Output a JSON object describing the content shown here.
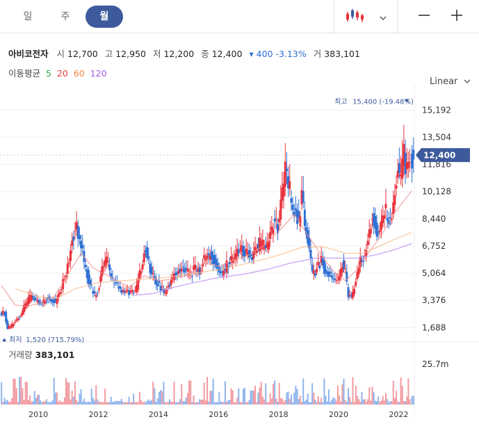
{
  "tabs": [
    {
      "label": "일",
      "active": false
    },
    {
      "label": "주",
      "active": false
    },
    {
      "label": "월",
      "active": true
    }
  ],
  "toolbar": {
    "chart_type_icon": "candlestick-icon",
    "dropdown_icon": "chevron-down-icon",
    "zoom_out_icon": "minus-icon",
    "zoom_in_icon": "plus-icon"
  },
  "info": {
    "name": "아비코전자",
    "open_label": "시",
    "open": "12,700",
    "high_label": "고",
    "high": "12,950",
    "low_label": "저",
    "low": "12,200",
    "close_label": "종",
    "close": "12,400",
    "change": "▾ 400 -3.13%",
    "volume_label": "거",
    "volume": "383,101"
  },
  "ma": {
    "label": "이동평균",
    "items": [
      {
        "period": "5",
        "color": "#2eaa3e"
      },
      {
        "period": "20",
        "color": "#ea3a3a"
      },
      {
        "period": "60",
        "color": "#f08a3c"
      },
      {
        "period": "120",
        "color": "#a259e6"
      }
    ]
  },
  "scale_button": "Linear",
  "volume_panel": {
    "label": "거래량",
    "value": "383,101"
  },
  "colors": {
    "up": "#e8323c",
    "down": "#2f6fd3",
    "accent": "#3d5a9c"
  },
  "chart_data": {
    "type": "candlestick",
    "y_ticks": [
      "15,192",
      "13,504",
      "11,816",
      "10,128",
      "8,440",
      "6,752",
      "5,064",
      "3,376",
      "1,688"
    ],
    "y_tick_values": [
      15192,
      13504,
      11816,
      10128,
      8440,
      6752,
      5064,
      3376,
      1688
    ],
    "ylim": [
      1400,
      16200
    ],
    "x_ticks": [
      "2010",
      "2012",
      "2014",
      "2016",
      "2018",
      "2020",
      "2022"
    ],
    "x_tick_years": [
      2010,
      2012,
      2014,
      2016,
      2018,
      2020,
      2022
    ],
    "xlim": [
      2008.7,
      2022.5
    ],
    "current_price_label": "12,400",
    "current_price": 12400,
    "high_annotation": {
      "label": "최고",
      "value": "15,400 (-19.48%)",
      "year": 2022.25,
      "price": 15400
    },
    "low_annotation": {
      "label": "최저",
      "value": "1,520 (715.79%)",
      "year": 2008.82,
      "price": 1520
    },
    "volume_axis_label": "25.7m",
    "volume_axis_value": 25.7,
    "volume_unit": "millions",
    "close_series": [
      [
        2008.75,
        2600
      ],
      [
        2008.9,
        1650
      ],
      [
        2009.0,
        1900
      ],
      [
        2009.2,
        2400
      ],
      [
        2009.4,
        3100
      ],
      [
        2009.6,
        3700
      ],
      [
        2009.8,
        3300
      ],
      [
        2010.0,
        3300
      ],
      [
        2010.2,
        3600
      ],
      [
        2010.4,
        3300
      ],
      [
        2010.6,
        4300
      ],
      [
        2010.8,
        5500
      ],
      [
        2011.0,
        7100
      ],
      [
        2011.15,
        8000
      ],
      [
        2011.3,
        6800
      ],
      [
        2011.45,
        5400
      ],
      [
        2011.6,
        4300
      ],
      [
        2011.75,
        3700
      ],
      [
        2011.9,
        3900
      ],
      [
        2012.0,
        5300
      ],
      [
        2012.15,
        5900
      ],
      [
        2012.3,
        4500
      ],
      [
        2012.5,
        4100
      ],
      [
        2012.7,
        4000
      ],
      [
        2012.9,
        3900
      ],
      [
        2013.1,
        4100
      ],
      [
        2013.3,
        5500
      ],
      [
        2013.45,
        6600
      ],
      [
        2013.6,
        5300
      ],
      [
        2013.75,
        4600
      ],
      [
        2013.9,
        4300
      ],
      [
        2014.05,
        3800
      ],
      [
        2014.25,
        4700
      ],
      [
        2014.45,
        5100
      ],
      [
        2014.65,
        5300
      ],
      [
        2014.85,
        5000
      ],
      [
        2015.05,
        5300
      ],
      [
        2015.25,
        5300
      ],
      [
        2015.4,
        6100
      ],
      [
        2015.55,
        6200
      ],
      [
        2015.75,
        5600
      ],
      [
        2015.95,
        5000
      ],
      [
        2016.15,
        5700
      ],
      [
        2016.35,
        6000
      ],
      [
        2016.55,
        6500
      ],
      [
        2016.75,
        6300
      ],
      [
        2016.95,
        6000
      ],
      [
        2017.15,
        6600
      ],
      [
        2017.3,
        7000
      ],
      [
        2017.45,
        6600
      ],
      [
        2017.6,
        7400
      ],
      [
        2017.75,
        8400
      ],
      [
        2017.9,
        7900
      ],
      [
        2018.0,
        9200
      ],
      [
        2018.1,
        11400
      ],
      [
        2018.25,
        10200
      ],
      [
        2018.4,
        8900
      ],
      [
        2018.55,
        8300
      ],
      [
        2018.7,
        9900
      ],
      [
        2018.8,
        8200
      ],
      [
        2018.9,
        7000
      ],
      [
        2019.0,
        5000
      ],
      [
        2019.15,
        5300
      ],
      [
        2019.3,
        5900
      ],
      [
        2019.45,
        5000
      ],
      [
        2019.6,
        5000
      ],
      [
        2019.75,
        4600
      ],
      [
        2019.85,
        4500
      ],
      [
        2020.0,
        5600
      ],
      [
        2020.15,
        5100
      ],
      [
        2020.25,
        3700
      ],
      [
        2020.35,
        3700
      ],
      [
        2020.5,
        4700
      ],
      [
        2020.6,
        5800
      ],
      [
        2020.75,
        6200
      ],
      [
        2020.9,
        7600
      ],
      [
        2021.05,
        8900
      ],
      [
        2021.15,
        7500
      ],
      [
        2021.3,
        8000
      ],
      [
        2021.45,
        9200
      ],
      [
        2021.55,
        8200
      ],
      [
        2021.7,
        8800
      ],
      [
        2021.8,
        9900
      ],
      [
        2021.9,
        11500
      ],
      [
        2022.0,
        10600
      ],
      [
        2022.1,
        12600
      ],
      [
        2022.2,
        11300
      ],
      [
        2022.25,
        12400
      ],
      [
        2022.35,
        12000
      ],
      [
        2022.42,
        12400
      ]
    ],
    "ma20_series": [
      [
        2008.75,
        4300
      ],
      [
        2009.2,
        3100
      ],
      [
        2009.6,
        3000
      ],
      [
        2010.0,
        3200
      ],
      [
        2010.5,
        3600
      ],
      [
        2011.0,
        5100
      ],
      [
        2011.4,
        6300
      ],
      [
        2011.8,
        5400
      ],
      [
        2012.2,
        5000
      ],
      [
        2012.6,
        4600
      ],
      [
        2013.0,
        4200
      ],
      [
        2013.5,
        4900
      ],
      [
        2014.0,
        4600
      ],
      [
        2014.5,
        4700
      ],
      [
        2015.0,
        5000
      ],
      [
        2015.5,
        5700
      ],
      [
        2016.0,
        5500
      ],
      [
        2016.5,
        5900
      ],
      [
        2017.0,
        6200
      ],
      [
        2017.5,
        6800
      ],
      [
        2018.0,
        7700
      ],
      [
        2018.5,
        8700
      ],
      [
        2019.0,
        7300
      ],
      [
        2019.4,
        6200
      ],
      [
        2019.8,
        5200
      ],
      [
        2020.2,
        4600
      ],
      [
        2020.6,
        5300
      ],
      [
        2021.0,
        6400
      ],
      [
        2021.4,
        7400
      ],
      [
        2021.8,
        8700
      ],
      [
        2022.42,
        10200
      ]
    ],
    "ma60_series": [
      [
        2009.2,
        4100
      ],
      [
        2010.0,
        3600
      ],
      [
        2010.6,
        3500
      ],
      [
        2011.2,
        4100
      ],
      [
        2012.0,
        4500
      ],
      [
        2012.8,
        4600
      ],
      [
        2013.5,
        4700
      ],
      [
        2014.3,
        4800
      ],
      [
        2015.0,
        5000
      ],
      [
        2016.0,
        5300
      ],
      [
        2017.0,
        5700
      ],
      [
        2018.0,
        6200
      ],
      [
        2018.8,
        6700
      ],
      [
        2019.5,
        6700
      ],
      [
        2020.2,
        6300
      ],
      [
        2020.8,
        6300
      ],
      [
        2021.4,
        6800
      ],
      [
        2022.0,
        7300
      ],
      [
        2022.42,
        7600
      ]
    ],
    "ma120_series": [
      [
        2013.2,
        3700
      ],
      [
        2013.8,
        3800
      ],
      [
        2014.5,
        4200
      ],
      [
        2015.2,
        4500
      ],
      [
        2016.0,
        4800
      ],
      [
        2016.8,
        5000
      ],
      [
        2017.6,
        5300
      ],
      [
        2018.4,
        5700
      ],
      [
        2019.2,
        6000
      ],
      [
        2020.0,
        6000
      ],
      [
        2020.6,
        6000
      ],
      [
        2021.2,
        6200
      ],
      [
        2021.8,
        6500
      ],
      [
        2022.42,
        6900
      ]
    ]
  }
}
